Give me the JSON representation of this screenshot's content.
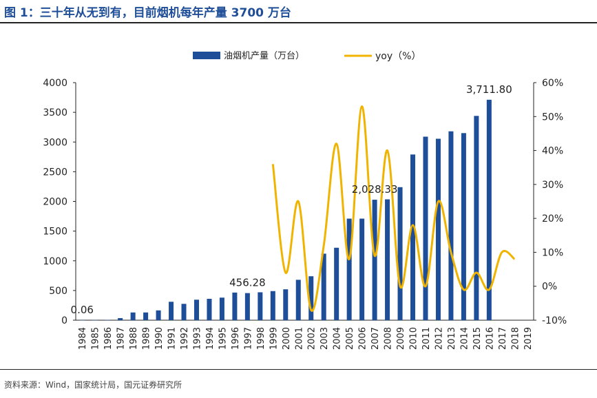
{
  "title": "图 1：三十年从无到有，目前烟机每年产量 3700 万台",
  "source": "资料来源：Wind，国家统计局，国元证券研究所",
  "chart_data": {
    "type": "bar",
    "categories": [
      "1984",
      "1985",
      "1986",
      "1987",
      "1988",
      "1989",
      "1990",
      "1991",
      "1992",
      "1993",
      "1994",
      "1995",
      "1996",
      "1997",
      "1998",
      "1999",
      "2000",
      "2001",
      "2002",
      "2003",
      "2004",
      "2005",
      "2006",
      "2007",
      "2008",
      "2009",
      "2010",
      "2011",
      "2012",
      "2013",
      "2014",
      "2015",
      "2016",
      "2017",
      "2018",
      "2019"
    ],
    "series": [
      {
        "name": "油烟机产量（万台）",
        "type": "bar",
        "axis": "left",
        "color": "#1f4e99",
        "values": [
          0.06,
          2,
          5,
          35,
          130,
          130,
          165,
          310,
          275,
          345,
          360,
          380,
          465,
          456.28,
          470,
          490,
          520,
          680,
          740,
          1120,
          1220,
          1710,
          1710,
          2028.33,
          2035,
          2240,
          2790,
          3090,
          3055,
          3180,
          3150,
          3440,
          3711.8,
          0,
          0,
          0
        ]
      },
      {
        "name": "yoy（%）",
        "type": "line",
        "axis": "right",
        "color": "#f0b400",
        "values": [
          null,
          null,
          null,
          null,
          null,
          null,
          null,
          null,
          null,
          null,
          null,
          null,
          null,
          null,
          null,
          36,
          4,
          25,
          -7,
          12,
          42,
          8,
          53,
          9,
          40,
          0,
          18,
          0,
          25,
          10,
          -1,
          4,
          -1,
          10,
          8,
          null
        ]
      }
    ],
    "annotations": [
      "0.06",
      "456.28",
      "2,028.33",
      "3,711.80"
    ],
    "left_axis": {
      "ticks": [
        "0",
        "500",
        "1000",
        "1500",
        "2000",
        "2500",
        "3000",
        "3500",
        "4000"
      ],
      "ylim": [
        0,
        4000
      ]
    },
    "right_axis": {
      "ticks": [
        "-10%",
        "0%",
        "10%",
        "20%",
        "30%",
        "40%",
        "50%",
        "60%"
      ],
      "ylim": [
        -10,
        60
      ]
    },
    "legend_position": "top",
    "grid": false
  }
}
